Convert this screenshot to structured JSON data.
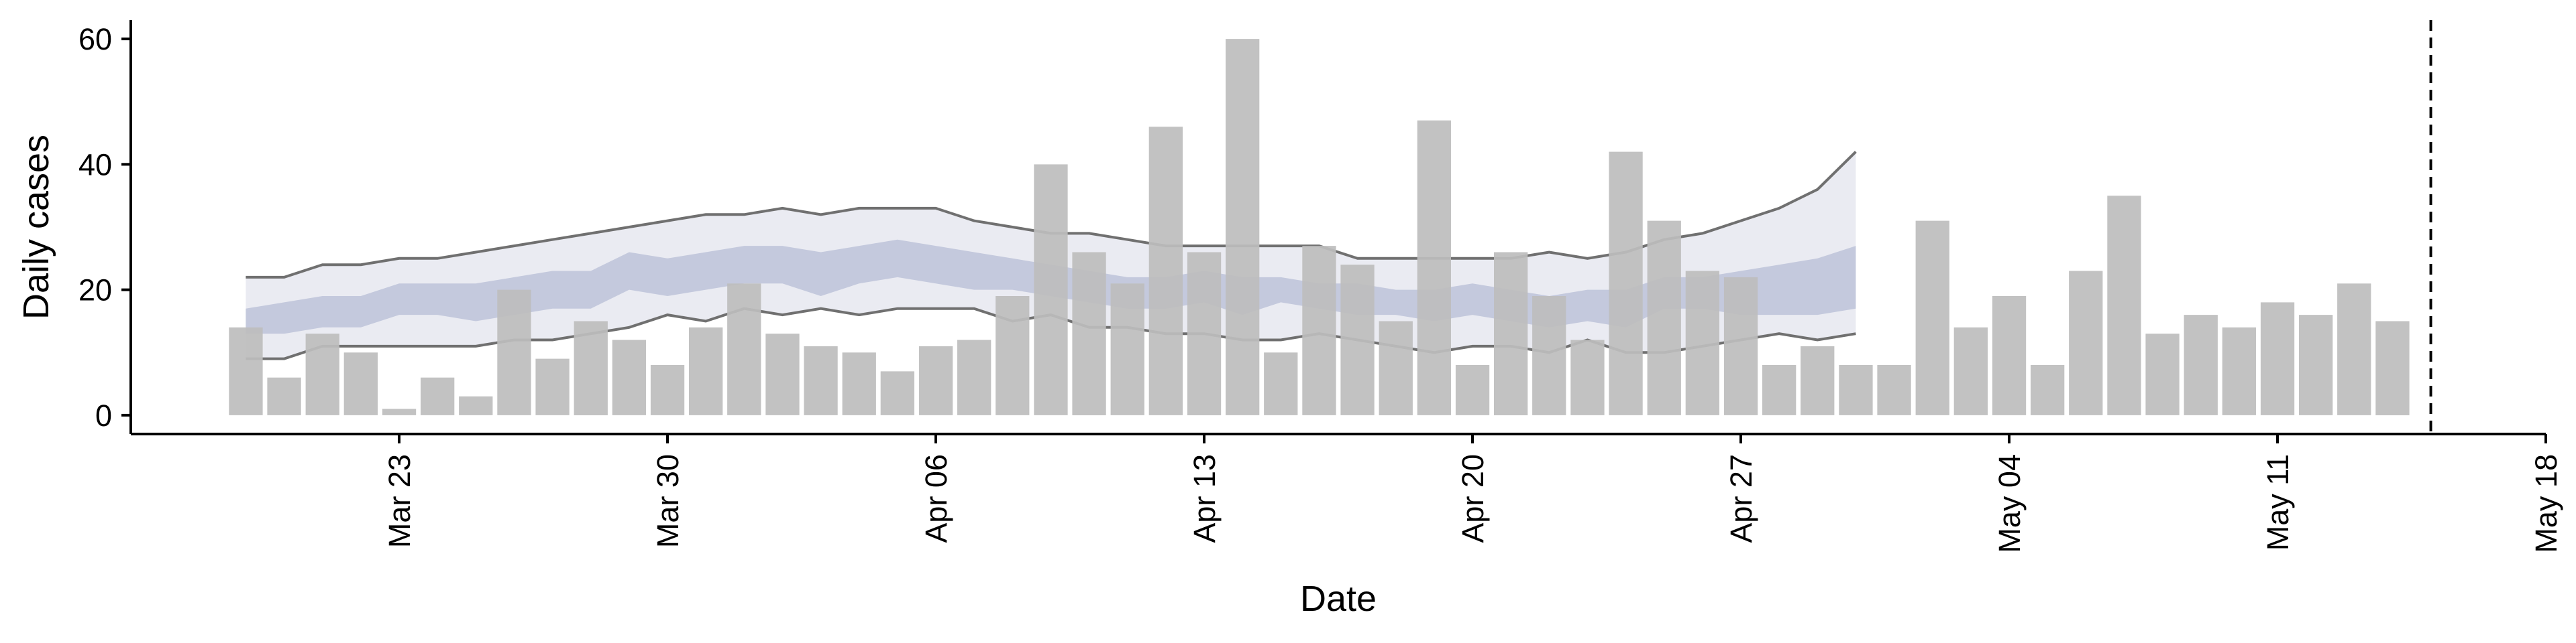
{
  "chart_data": {
    "type": "bar",
    "xlabel": "Date",
    "ylabel": "Daily cases",
    "x_axis": {
      "type": "date",
      "range": [
        "2020-03-16",
        "2020-05-18"
      ],
      "ticks": [
        "2020-03-23",
        "2020-03-30",
        "2020-04-06",
        "2020-04-13",
        "2020-04-20",
        "2020-04-27",
        "2020-05-04",
        "2020-05-11",
        "2020-05-18"
      ],
      "tick_labels": [
        "Mar 23",
        "Mar 30",
        "Apr 06",
        "Apr 13",
        "Apr 20",
        "Apr 27",
        "May 04",
        "May 11",
        "May 18"
      ]
    },
    "y_axis": {
      "range": [
        -3,
        63
      ],
      "ticks": [
        0,
        20,
        40,
        60
      ],
      "tick_labels": [
        "0",
        "20",
        "40",
        "60"
      ]
    },
    "grid": false,
    "legend": "none",
    "colors": {
      "bars": "#bdbdbd",
      "band_outer": "#e6e8f0",
      "band_inner": "#aab3ce",
      "band_lines": "#707070",
      "axis": "#000000"
    },
    "bars": {
      "start_date": "2020-03-19",
      "values": [
        14,
        6,
        13,
        10,
        1,
        6,
        3,
        20,
        9,
        15,
        12,
        8,
        14,
        21,
        13,
        11,
        10,
        7,
        11,
        12,
        19,
        40,
        26,
        21,
        46,
        26,
        60,
        10,
        27,
        24,
        15,
        47,
        8,
        26,
        19,
        12,
        42,
        31,
        23,
        22,
        8,
        11,
        8,
        8,
        31,
        14,
        19,
        8,
        23,
        35,
        13,
        16,
        14,
        18,
        16,
        21,
        15
      ]
    },
    "bands": {
      "start_date": "2020-03-19",
      "outer_upper": [
        22,
        22,
        24,
        24,
        25,
        25,
        26,
        27,
        28,
        29,
        30,
        31,
        32,
        32,
        33,
        32,
        33,
        33,
        33,
        31,
        30,
        29,
        29,
        28,
        27,
        27,
        27,
        27,
        27,
        25,
        25,
        25,
        25,
        25,
        26,
        25,
        26,
        28,
        29,
        31,
        33,
        36,
        42
      ],
      "outer_lower": [
        9,
        9,
        11,
        11,
        11,
        11,
        11,
        12,
        12,
        13,
        14,
        16,
        15,
        17,
        16,
        17,
        16,
        17,
        17,
        17,
        15,
        16,
        14,
        14,
        13,
        13,
        12,
        12,
        13,
        12,
        11,
        10,
        11,
        11,
        10,
        12,
        10,
        10,
        11,
        12,
        13,
        12,
        13
      ],
      "inner_upper": [
        17,
        18,
        19,
        19,
        21,
        21,
        21,
        22,
        23,
        23,
        26,
        25,
        26,
        27,
        27,
        26,
        27,
        28,
        27,
        26,
        25,
        24,
        23,
        22,
        22,
        23,
        22,
        22,
        21,
        21,
        20,
        20,
        21,
        20,
        19,
        20,
        20,
        22,
        22,
        23,
        24,
        25,
        27
      ],
      "inner_lower": [
        13,
        13,
        14,
        14,
        16,
        16,
        15,
        16,
        17,
        17,
        20,
        19,
        20,
        21,
        21,
        19,
        21,
        22,
        21,
        20,
        20,
        19,
        18,
        17,
        17,
        18,
        16,
        18,
        17,
        16,
        16,
        15,
        16,
        15,
        14,
        15,
        14,
        17,
        17,
        16,
        16,
        16,
        17
      ]
    },
    "reference_line": {
      "date": "2020-05-15",
      "style": "dashed"
    }
  }
}
